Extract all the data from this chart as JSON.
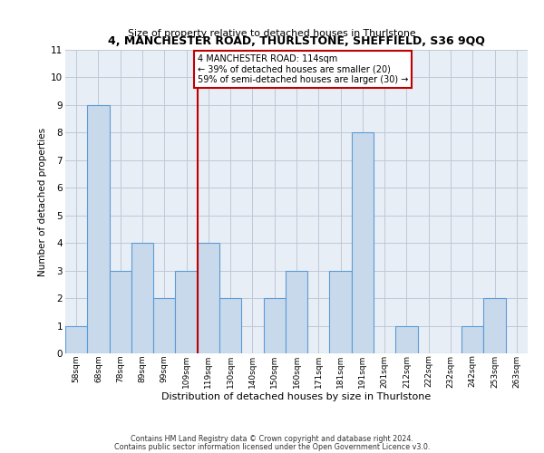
{
  "title": "4, MANCHESTER ROAD, THURLSTONE, SHEFFIELD, S36 9QQ",
  "subtitle": "Size of property relative to detached houses in Thurlstone",
  "xlabel": "Distribution of detached houses by size in Thurlstone",
  "ylabel": "Number of detached properties",
  "footer_line1": "Contains HM Land Registry data © Crown copyright and database right 2024.",
  "footer_line2": "Contains public sector information licensed under the Open Government Licence v3.0.",
  "categories": [
    "58sqm",
    "68sqm",
    "78sqm",
    "89sqm",
    "99sqm",
    "109sqm",
    "119sqm",
    "130sqm",
    "140sqm",
    "150sqm",
    "160sqm",
    "171sqm",
    "181sqm",
    "191sqm",
    "201sqm",
    "212sqm",
    "222sqm",
    "232sqm",
    "242sqm",
    "253sqm",
    "263sqm"
  ],
  "values": [
    1,
    9,
    3,
    4,
    2,
    3,
    4,
    2,
    0,
    2,
    3,
    0,
    3,
    8,
    0,
    1,
    0,
    0,
    1,
    2,
    0
  ],
  "bar_color": "#c9d9ec",
  "bar_edge_color": "#5b9bd5",
  "property_line_x": 5.5,
  "annotation_title": "4 MANCHESTER ROAD: 114sqm",
  "annotation_line2": "← 39% of detached houses are smaller (20)",
  "annotation_line3": "59% of semi-detached houses are larger (30) →",
  "annotation_box_edge": "#c00000",
  "annotation_line_color": "#c00000",
  "ylim": [
    0,
    11
  ],
  "yticks": [
    0,
    1,
    2,
    3,
    4,
    5,
    6,
    7,
    8,
    9,
    10,
    11
  ],
  "plot_bg_color": "#e8eef5",
  "background_color": "#ffffff",
  "grid_color": "#c0c8d8"
}
